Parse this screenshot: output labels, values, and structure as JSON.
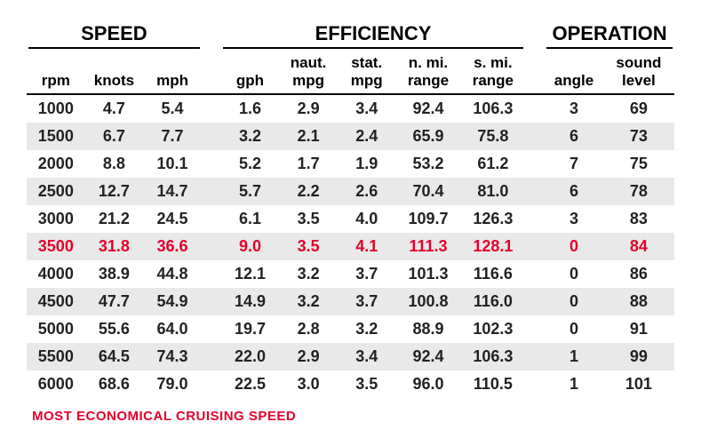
{
  "groups": {
    "speed": "SPEED",
    "efficiency": "EFFICIENCY",
    "operation": "OPERATION"
  },
  "headers": {
    "rpm": "rpm",
    "knots": "knots",
    "mph": "mph",
    "gph": "gph",
    "naut_top": "naut.",
    "naut_bot": "mpg",
    "stat_top": "stat.",
    "stat_bot": "mpg",
    "nmi_top": "n. mi.",
    "nmi_bot": "range",
    "smi_top": "s. mi.",
    "smi_bot": "range",
    "angle": "angle",
    "sound_top": "sound",
    "sound_bot": "level"
  },
  "rows": [
    {
      "rpm": "1000",
      "knots": "4.7",
      "mph": "5.4",
      "gph": "1.6",
      "nmpg": "2.9",
      "smpg": "3.4",
      "nrange": "92.4",
      "srange": "106.3",
      "angle": "3",
      "sound": "69",
      "highlight": false
    },
    {
      "rpm": "1500",
      "knots": "6.7",
      "mph": "7.7",
      "gph": "3.2",
      "nmpg": "2.1",
      "smpg": "2.4",
      "nrange": "65.9",
      "srange": "75.8",
      "angle": "6",
      "sound": "73",
      "highlight": false
    },
    {
      "rpm": "2000",
      "knots": "8.8",
      "mph": "10.1",
      "gph": "5.2",
      "nmpg": "1.7",
      "smpg": "1.9",
      "nrange": "53.2",
      "srange": "61.2",
      "angle": "7",
      "sound": "75",
      "highlight": false
    },
    {
      "rpm": "2500",
      "knots": "12.7",
      "mph": "14.7",
      "gph": "5.7",
      "nmpg": "2.2",
      "smpg": "2.6",
      "nrange": "70.4",
      "srange": "81.0",
      "angle": "6",
      "sound": "78",
      "highlight": false
    },
    {
      "rpm": "3000",
      "knots": "21.2",
      "mph": "24.5",
      "gph": "6.1",
      "nmpg": "3.5",
      "smpg": "4.0",
      "nrange": "109.7",
      "srange": "126.3",
      "angle": "3",
      "sound": "83",
      "highlight": false
    },
    {
      "rpm": "3500",
      "knots": "31.8",
      "mph": "36.6",
      "gph": "9.0",
      "nmpg": "3.5",
      "smpg": "4.1",
      "nrange": "111.3",
      "srange": "128.1",
      "angle": "0",
      "sound": "84",
      "highlight": true
    },
    {
      "rpm": "4000",
      "knots": "38.9",
      "mph": "44.8",
      "gph": "12.1",
      "nmpg": "3.2",
      "smpg": "3.7",
      "nrange": "101.3",
      "srange": "116.6",
      "angle": "0",
      "sound": "86",
      "highlight": false
    },
    {
      "rpm": "4500",
      "knots": "47.7",
      "mph": "54.9",
      "gph": "14.9",
      "nmpg": "3.2",
      "smpg": "3.7",
      "nrange": "100.8",
      "srange": "116.0",
      "angle": "0",
      "sound": "88",
      "highlight": false
    },
    {
      "rpm": "5000",
      "knots": "55.6",
      "mph": "64.0",
      "gph": "19.7",
      "nmpg": "2.8",
      "smpg": "3.2",
      "nrange": "88.9",
      "srange": "102.3",
      "angle": "0",
      "sound": "91",
      "highlight": false
    },
    {
      "rpm": "5500",
      "knots": "64.5",
      "mph": "74.3",
      "gph": "22.0",
      "nmpg": "2.9",
      "smpg": "3.4",
      "nrange": "92.4",
      "srange": "106.3",
      "angle": "1",
      "sound": "99",
      "highlight": false
    },
    {
      "rpm": "6000",
      "knots": "68.6",
      "mph": "79.0",
      "gph": "22.5",
      "nmpg": "3.0",
      "smpg": "3.5",
      "nrange": "96.0",
      "srange": "110.5",
      "angle": "1",
      "sound": "101",
      "highlight": false
    }
  ],
  "footer": "MOST ECONOMICAL CRUISING SPEED",
  "colors": {
    "highlight": "#e4002b",
    "row_even": "#e9e9e9",
    "row_odd": "#ffffff",
    "text": "#222222",
    "line": "#000000"
  }
}
